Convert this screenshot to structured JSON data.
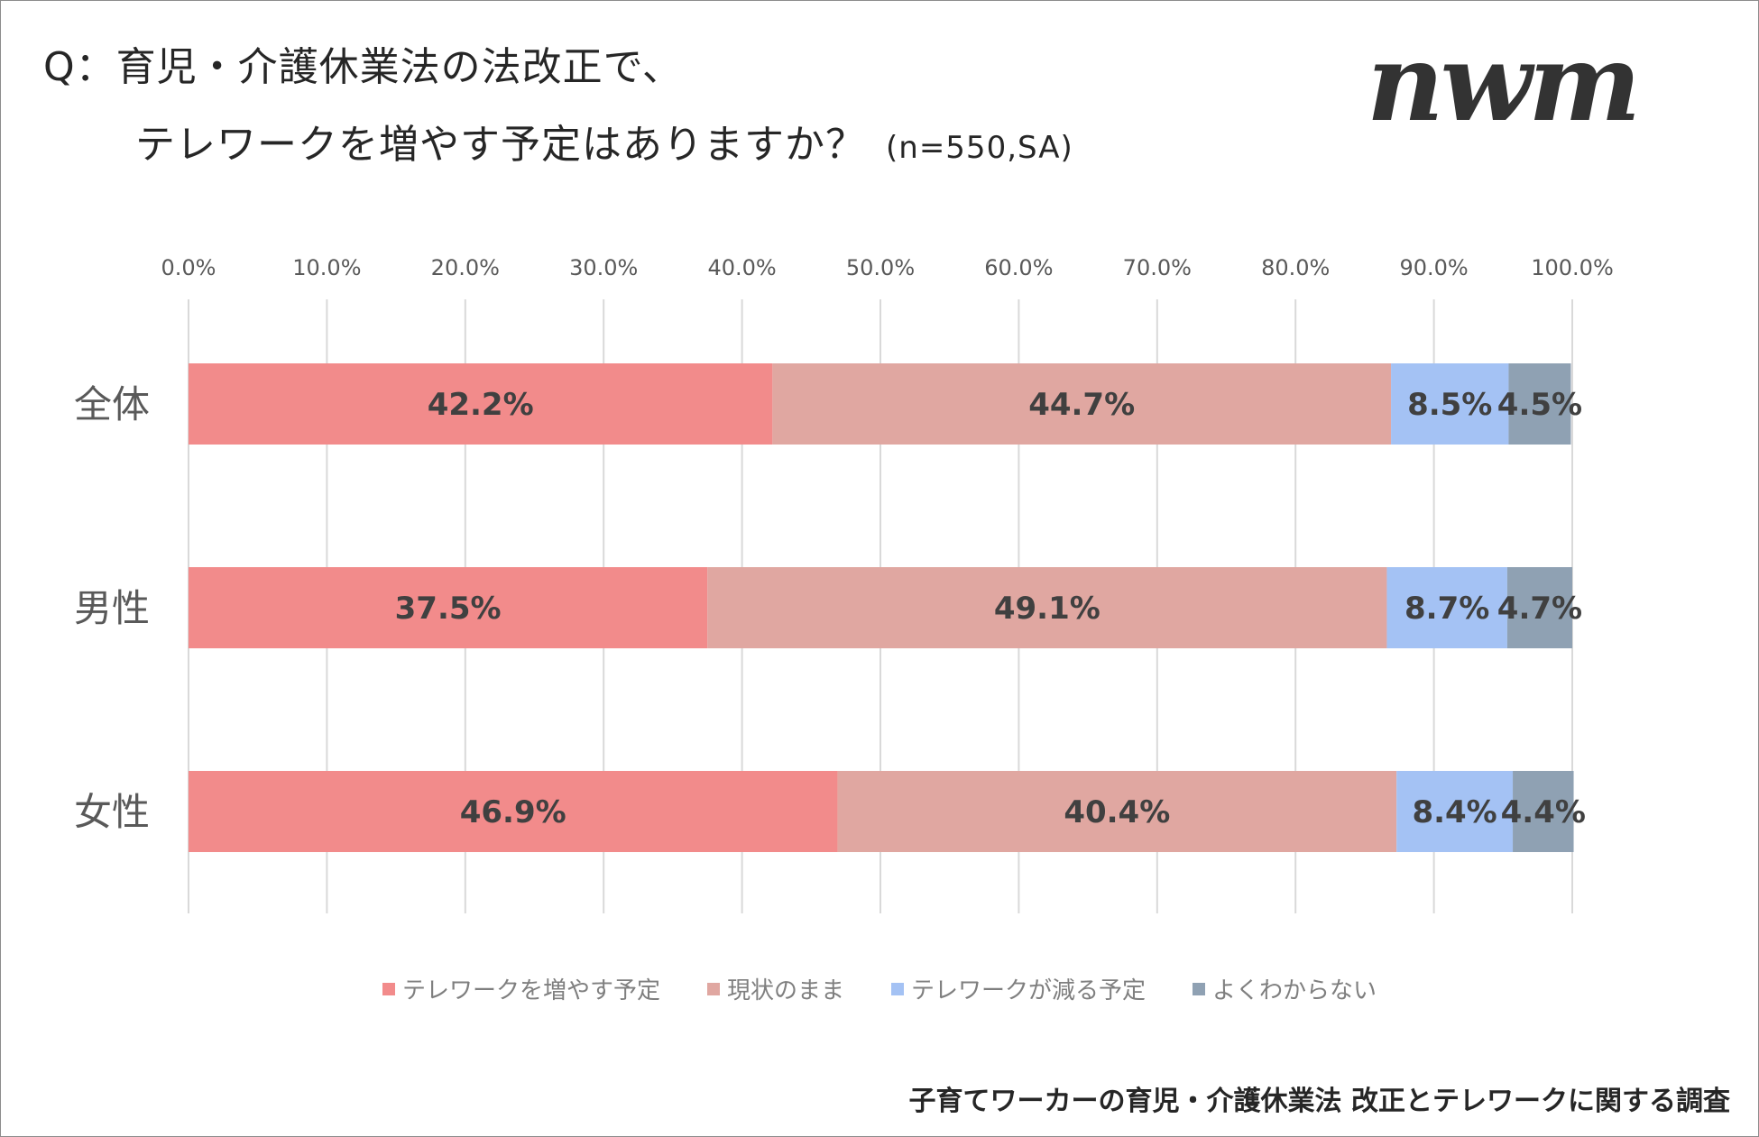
{
  "title": {
    "line1": "Q：育児・介護休業法の法改正で、",
    "line2": "テレワークを増やす予定はありますか？",
    "note": "(n=550,SA)"
  },
  "logo_text": "nwm",
  "footer": "子育てワーカーの育児・介護休業法 改正とテレワークに関する調査",
  "chart_data": {
    "type": "bar",
    "orientation": "horizontal",
    "stacked": true,
    "percent_scale": true,
    "categories": [
      "全体",
      "男性",
      "女性"
    ],
    "xlim": [
      0,
      100
    ],
    "xticks": [
      "0.0%",
      "10.0%",
      "20.0%",
      "30.0%",
      "40.0%",
      "50.0%",
      "60.0%",
      "70.0%",
      "80.0%",
      "90.0%",
      "100.0%"
    ],
    "grid": true,
    "legend_position": "bottom",
    "series": [
      {
        "name": "テレワークを増やす予定",
        "color": "#f28b8b",
        "values": [
          42.2,
          37.5,
          46.9
        ],
        "labels": [
          "42.2%",
          "37.5%",
          "46.9%"
        ]
      },
      {
        "name": "現状のまま",
        "color": "#e0a7a1",
        "values": [
          44.7,
          49.1,
          40.4
        ],
        "labels": [
          "44.7%",
          "49.1%",
          "40.4%"
        ]
      },
      {
        "name": "テレワークが減る予定",
        "color": "#a4c2f4",
        "values": [
          8.5,
          8.7,
          8.4
        ],
        "labels": [
          "8.5%",
          "8.7%",
          "8.4%"
        ]
      },
      {
        "name": "よくわからない",
        "color": "#8fa1b3",
        "values": [
          4.5,
          4.7,
          4.4
        ],
        "labels": [
          "4.5%",
          "4.7%",
          "4.4%"
        ]
      }
    ]
  }
}
